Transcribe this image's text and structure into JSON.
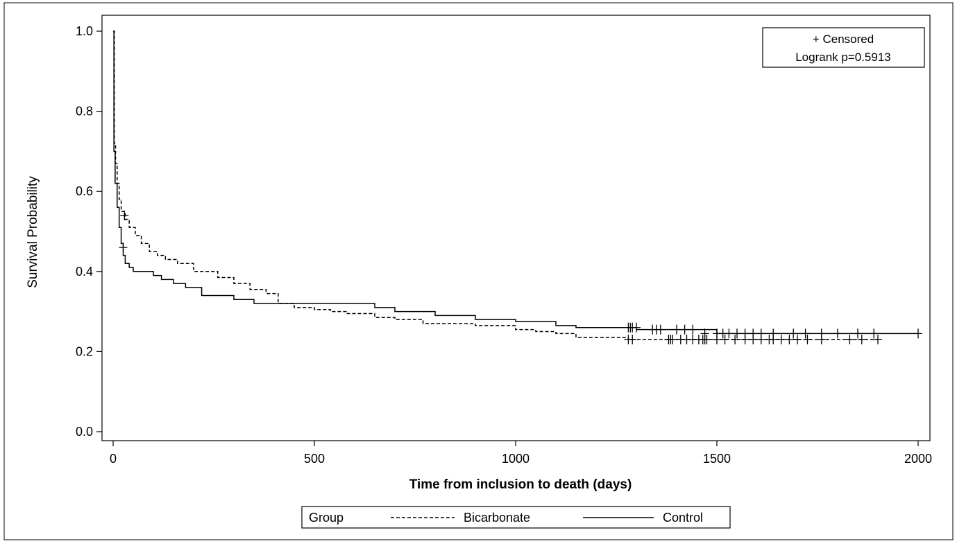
{
  "chart_data": {
    "type": "line",
    "title": "",
    "xlabel": "Time from inclusion to death (days)",
    "ylabel": "Survival Probability",
    "xlim": [
      0,
      2000
    ],
    "ylim": [
      0.0,
      1.0
    ],
    "xticks": [
      0,
      500,
      1000,
      1500,
      2000
    ],
    "xtick_labels": [
      "0",
      "500",
      "1000",
      "1500",
      "2000"
    ],
    "yticks": [
      0.0,
      0.2,
      0.4,
      0.6,
      0.8,
      1.0
    ],
    "ytick_labels": [
      "0.0",
      "0.2",
      "0.4",
      "0.6",
      "0.8",
      "1.0"
    ],
    "grid": false,
    "annotation": {
      "censored_label": "+ Censored",
      "logrank_label": "Logrank p=0.5913"
    },
    "legend": {
      "title": "Group",
      "placement": "bottom-center",
      "entries": [
        "Bicarbonate",
        "Control"
      ]
    },
    "series": [
      {
        "name": "Bicarbonate",
        "style": "dashed",
        "color": "#000000",
        "x": [
          0,
          3,
          6,
          10,
          15,
          20,
          30,
          40,
          55,
          70,
          90,
          110,
          130,
          160,
          200,
          260,
          300,
          340,
          380,
          410,
          450,
          500,
          540,
          580,
          650,
          700,
          770,
          900,
          1000,
          1050,
          1100,
          1150,
          1280,
          1900
        ],
        "y": [
          1.0,
          0.72,
          0.67,
          0.62,
          0.58,
          0.55,
          0.53,
          0.51,
          0.49,
          0.47,
          0.45,
          0.44,
          0.43,
          0.42,
          0.4,
          0.385,
          0.37,
          0.355,
          0.345,
          0.32,
          0.31,
          0.305,
          0.3,
          0.295,
          0.285,
          0.28,
          0.27,
          0.265,
          0.255,
          0.25,
          0.245,
          0.235,
          0.23,
          0.23
        ],
        "censored": [
          {
            "x": 28,
            "y": 0.54
          },
          {
            "x": 1280,
            "y": 0.23
          },
          {
            "x": 1290,
            "y": 0.23
          },
          {
            "x": 1380,
            "y": 0.23
          },
          {
            "x": 1385,
            "y": 0.23
          },
          {
            "x": 1390,
            "y": 0.23
          },
          {
            "x": 1410,
            "y": 0.23
          },
          {
            "x": 1425,
            "y": 0.23
          },
          {
            "x": 1440,
            "y": 0.23
          },
          {
            "x": 1455,
            "y": 0.23
          },
          {
            "x": 1465,
            "y": 0.23
          },
          {
            "x": 1470,
            "y": 0.23
          },
          {
            "x": 1475,
            "y": 0.23
          },
          {
            "x": 1500,
            "y": 0.23
          },
          {
            "x": 1520,
            "y": 0.23
          },
          {
            "x": 1545,
            "y": 0.23
          },
          {
            "x": 1570,
            "y": 0.23
          },
          {
            "x": 1590,
            "y": 0.23
          },
          {
            "x": 1610,
            "y": 0.23
          },
          {
            "x": 1630,
            "y": 0.23
          },
          {
            "x": 1640,
            "y": 0.23
          },
          {
            "x": 1660,
            "y": 0.23
          },
          {
            "x": 1680,
            "y": 0.23
          },
          {
            "x": 1700,
            "y": 0.23
          },
          {
            "x": 1725,
            "y": 0.23
          },
          {
            "x": 1760,
            "y": 0.23
          },
          {
            "x": 1830,
            "y": 0.23
          },
          {
            "x": 1860,
            "y": 0.23
          },
          {
            "x": 1900,
            "y": 0.23
          }
        ]
      },
      {
        "name": "Control",
        "style": "solid",
        "color": "#000000",
        "x": [
          0,
          2,
          5,
          10,
          15,
          20,
          25,
          30,
          40,
          50,
          70,
          100,
          120,
          150,
          180,
          220,
          300,
          350,
          400,
          650,
          700,
          800,
          900,
          1000,
          1100,
          1150,
          1300,
          1500,
          2000
        ],
        "y": [
          1.0,
          0.7,
          0.62,
          0.56,
          0.51,
          0.47,
          0.44,
          0.42,
          0.41,
          0.4,
          0.4,
          0.39,
          0.38,
          0.37,
          0.36,
          0.34,
          0.33,
          0.32,
          0.32,
          0.31,
          0.3,
          0.29,
          0.28,
          0.275,
          0.265,
          0.26,
          0.255,
          0.245,
          0.245
        ],
        "censored": [
          {
            "x": 25,
            "y": 0.46
          },
          {
            "x": 1280,
            "y": 0.26
          },
          {
            "x": 1285,
            "y": 0.26
          },
          {
            "x": 1290,
            "y": 0.26
          },
          {
            "x": 1300,
            "y": 0.26
          },
          {
            "x": 1340,
            "y": 0.255
          },
          {
            "x": 1350,
            "y": 0.255
          },
          {
            "x": 1360,
            "y": 0.255
          },
          {
            "x": 1400,
            "y": 0.255
          },
          {
            "x": 1420,
            "y": 0.255
          },
          {
            "x": 1440,
            "y": 0.255
          },
          {
            "x": 1470,
            "y": 0.245
          },
          {
            "x": 1500,
            "y": 0.245
          },
          {
            "x": 1515,
            "y": 0.245
          },
          {
            "x": 1530,
            "y": 0.245
          },
          {
            "x": 1550,
            "y": 0.245
          },
          {
            "x": 1570,
            "y": 0.245
          },
          {
            "x": 1590,
            "y": 0.245
          },
          {
            "x": 1610,
            "y": 0.245
          },
          {
            "x": 1640,
            "y": 0.245
          },
          {
            "x": 1690,
            "y": 0.245
          },
          {
            "x": 1720,
            "y": 0.245
          },
          {
            "x": 1760,
            "y": 0.245
          },
          {
            "x": 1800,
            "y": 0.245
          },
          {
            "x": 1850,
            "y": 0.245
          },
          {
            "x": 1890,
            "y": 0.245
          },
          {
            "x": 2000,
            "y": 0.245
          }
        ]
      }
    ]
  }
}
